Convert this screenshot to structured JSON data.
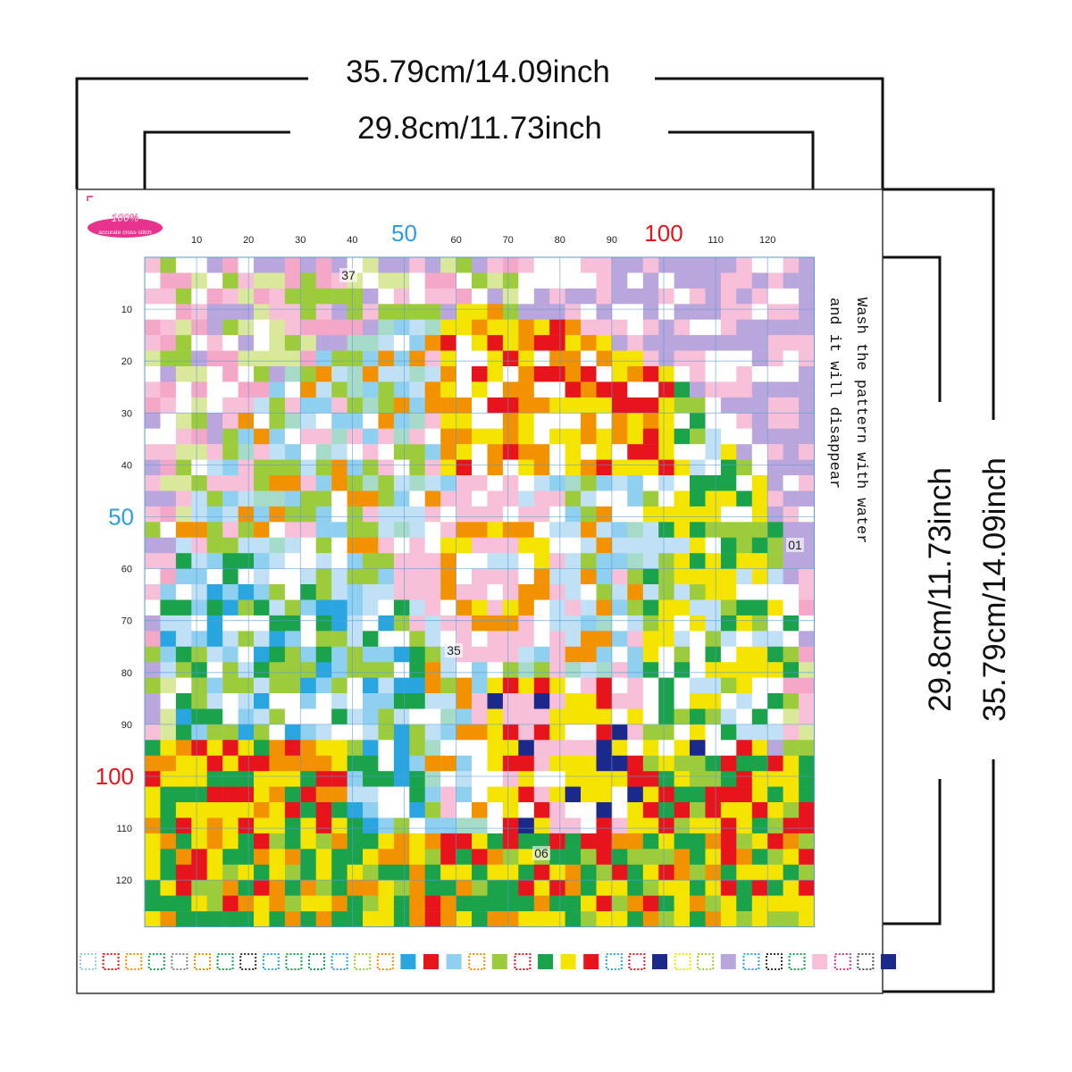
{
  "dimensions": {
    "outer_width": "35.79cm/14.09inch",
    "inner_width": "29.8cm/11.73inch",
    "inner_height": "29.8cm/11.73inch",
    "outer_height": "35.79cm/14.09inch"
  },
  "logo": {
    "badge": "100%",
    "caption": "accurate cross stitch"
  },
  "grid": {
    "x_ticks": [
      10,
      20,
      30,
      40,
      60,
      70,
      80,
      90,
      110,
      120
    ],
    "y_ticks": [
      10,
      20,
      30,
      40,
      60,
      70,
      80,
      90,
      110,
      120
    ],
    "major_ticks": [
      {
        "value": 50,
        "color": "#2a9fe0"
      },
      {
        "value": 100,
        "color": "#e8141c"
      }
    ]
  },
  "region_labels": [
    "37",
    "35",
    "01",
    "06"
  ],
  "note": {
    "lines": [
      "Wash the pattern with water",
      "and it will disappear"
    ]
  }
}
